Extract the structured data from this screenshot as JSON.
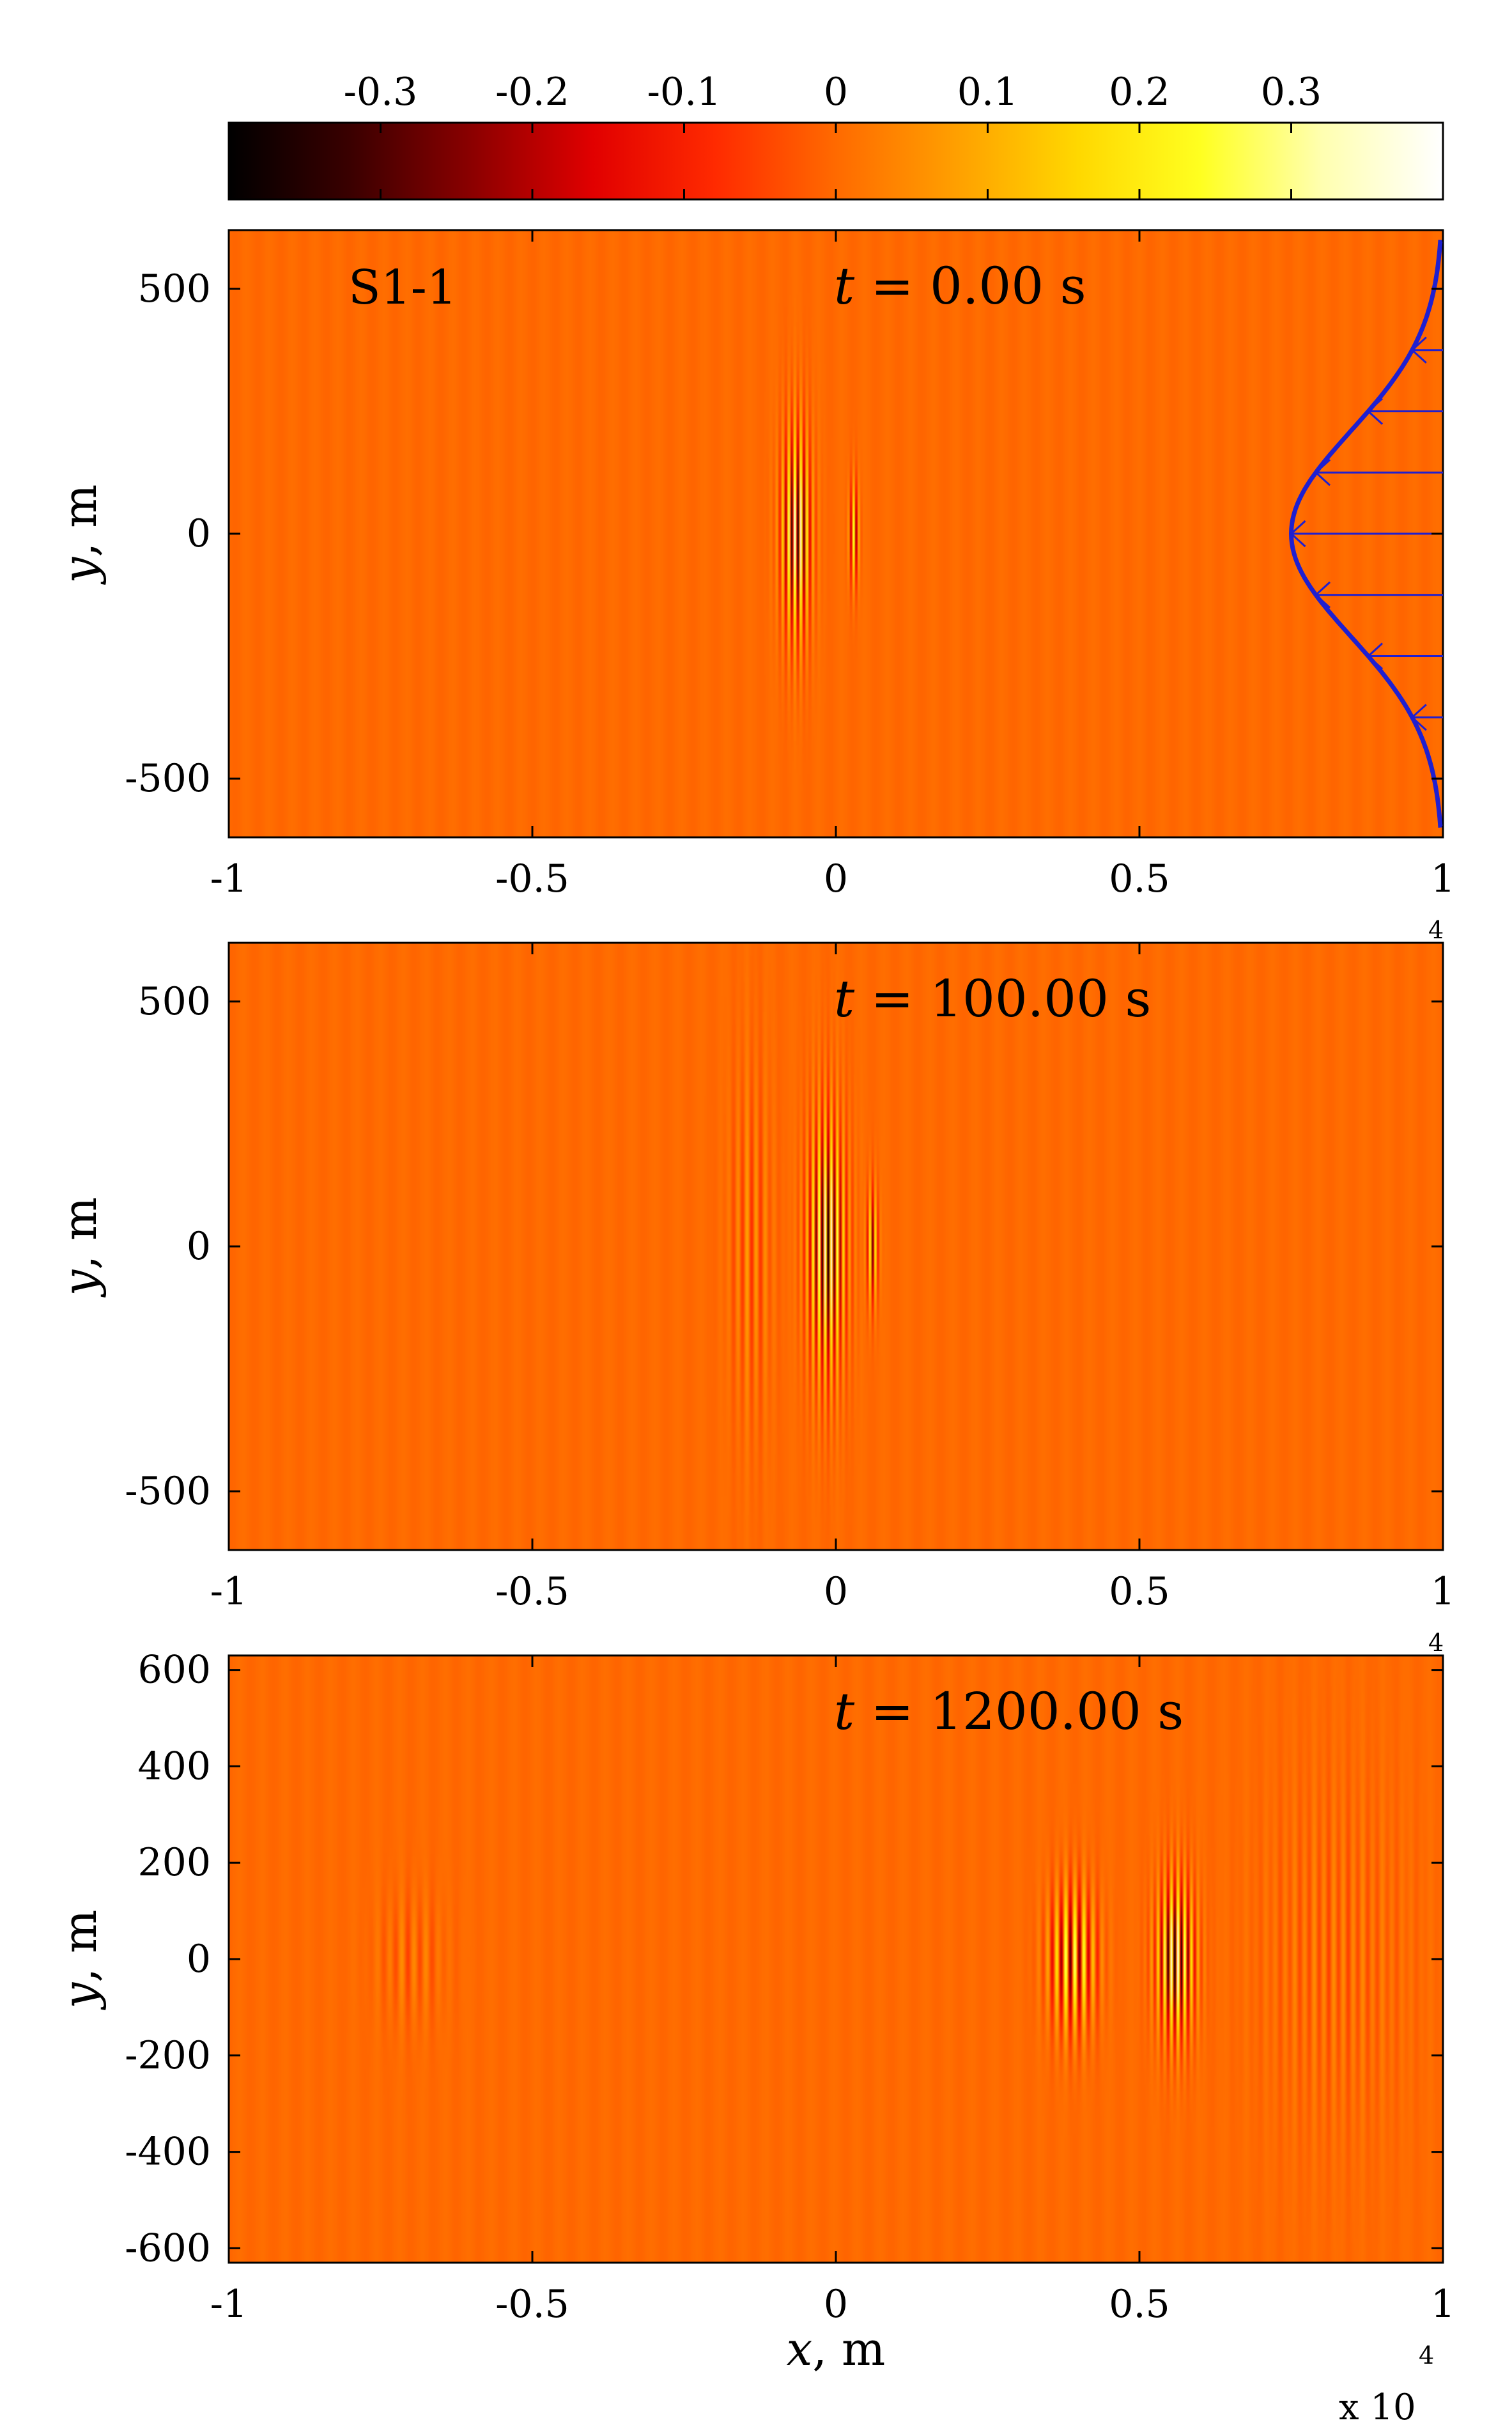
{
  "colormap": {
    "name": "hot",
    "range": [
      -0.4,
      0.4
    ],
    "stops": [
      "#000000",
      "#3a0000",
      "#8b0000",
      "#e10000",
      "#ff2a00",
      "#ff6a00",
      "#ffa000",
      "#ffd800",
      "#ffff20",
      "#ffffb0",
      "#ffffff"
    ],
    "background_color": "#ff6a00",
    "ticks": [
      {
        "value": -0.3,
        "label": "-0.3"
      },
      {
        "value": -0.2,
        "label": "-0.2"
      },
      {
        "value": -0.1,
        "label": "-0.1"
      },
      {
        "value": 0,
        "label": "0"
      },
      {
        "value": 0.1,
        "label": "0.1"
      },
      {
        "value": 0.2,
        "label": "0.2"
      },
      {
        "value": 0.3,
        "label": "0.3"
      }
    ]
  },
  "chart_data": [
    {
      "type": "heatmap",
      "tag": "S1-1",
      "title": "t = 0.00 s",
      "title_parts": {
        "var": "t",
        "eq": " = ",
        "val": "0.00 s"
      },
      "xlabel": "",
      "ylabel": "y, m",
      "ylabel_parts": {
        "var": "y",
        "unit": ", m"
      },
      "xlim": [
        -10000,
        10000
      ],
      "ylim": [
        -620,
        620
      ],
      "x_ticks": [
        {
          "value": -10000,
          "label": "-1"
        },
        {
          "value": -5000,
          "label": "-0.5"
        },
        {
          "value": 0,
          "label": "0"
        },
        {
          "value": 5000,
          "label": "0.5"
        },
        {
          "value": 10000,
          "label": "1"
        }
      ],
      "x_exponent": "4",
      "y_ticks": [
        {
          "value": 500,
          "label": "500"
        },
        {
          "value": 0,
          "label": "0"
        },
        {
          "value": -500,
          "label": "-500"
        }
      ],
      "wave_packets": [
        {
          "x_center": -650,
          "y_half": 300,
          "x_half": 350,
          "amplitude": 0.4,
          "wavelength": 100
        },
        {
          "x_center": 300,
          "y_half": 150,
          "x_half": 120,
          "amplitude": 0.3,
          "wavelength": 90
        }
      ],
      "current_profile": {
        "x_base": 10000,
        "max_dx": 2500,
        "y_sigma": 210,
        "y_range": [
          -600,
          600
        ],
        "arrow_y": [
          500,
          375,
          250,
          125,
          0,
          -125,
          -250,
          -375,
          -500
        ],
        "color": "#1f1fd0"
      }
    },
    {
      "type": "heatmap",
      "tag": "",
      "title": "t = 100.00 s",
      "title_parts": {
        "var": "t",
        "eq": " = ",
        "val": "100.00 s"
      },
      "xlabel": "",
      "ylabel": "y, m",
      "ylabel_parts": {
        "var": "y",
        "unit": ", m"
      },
      "xlim": [
        -10000,
        10000
      ],
      "ylim": [
        -620,
        620
      ],
      "x_ticks": [
        {
          "value": -10000,
          "label": "-1"
        },
        {
          "value": -5000,
          "label": "-0.5"
        },
        {
          "value": 0,
          "label": "0"
        },
        {
          "value": 5000,
          "label": "0.5"
        },
        {
          "value": 10000,
          "label": "1"
        }
      ],
      "x_exponent": "4",
      "y_ticks": [
        {
          "value": 500,
          "label": "500"
        },
        {
          "value": 0,
          "label": "0"
        },
        {
          "value": -500,
          "label": "-500"
        }
      ],
      "wave_packets": [
        {
          "x_center": -150,
          "y_half": 370,
          "x_half": 450,
          "amplitude": 0.4,
          "wavelength": 100
        },
        {
          "x_center": 600,
          "y_half": 170,
          "x_half": 140,
          "amplitude": 0.3,
          "wavelength": 90
        },
        {
          "x_center": -1400,
          "y_half": 520,
          "x_half": 500,
          "amplitude": 0.08,
          "wavelength": 150
        }
      ]
    },
    {
      "type": "heatmap",
      "tag": "",
      "title": "t = 1200.00 s",
      "title_parts": {
        "var": "t",
        "eq": " = ",
        "val": "1200.00 s"
      },
      "xlabel": "x, m",
      "xlabel_parts": {
        "var": "x",
        "unit": ", m"
      },
      "ylabel": "y, m",
      "ylabel_parts": {
        "var": "y",
        "unit": ", m"
      },
      "xlim": [
        -10000,
        10000
      ],
      "ylim": [
        -630,
        630
      ],
      "x_ticks": [
        {
          "value": -10000,
          "label": "-1"
        },
        {
          "value": -5000,
          "label": "-0.5"
        },
        {
          "value": 0,
          "label": "0"
        },
        {
          "value": 5000,
          "label": "0.5"
        },
        {
          "value": 10000,
          "label": "1"
        }
      ],
      "x_exponent": "4",
      "x_multiplier": "x 10",
      "y_ticks": [
        {
          "value": 600,
          "label": "600"
        },
        {
          "value": 400,
          "label": "400"
        },
        {
          "value": 200,
          "label": "200"
        },
        {
          "value": 0,
          "label": "0"
        },
        {
          "value": -200,
          "label": "-200"
        },
        {
          "value": -400,
          "label": "-400"
        },
        {
          "value": -600,
          "label": "-600"
        }
      ],
      "wave_packets": [
        {
          "x_center": 5600,
          "y_half": 230,
          "x_half": 450,
          "amplitude": 0.4,
          "wavelength": 110
        },
        {
          "x_center": 3900,
          "y_half": 210,
          "x_half": 550,
          "amplitude": 0.3,
          "wavelength": 150
        },
        {
          "x_center": -7000,
          "y_half": 200,
          "x_half": 800,
          "amplitude": 0.05,
          "wavelength": 200
        },
        {
          "x_center": 8200,
          "y_half": 520,
          "x_half": 1700,
          "amplitude": 0.05,
          "wavelength": 160
        }
      ]
    }
  ]
}
